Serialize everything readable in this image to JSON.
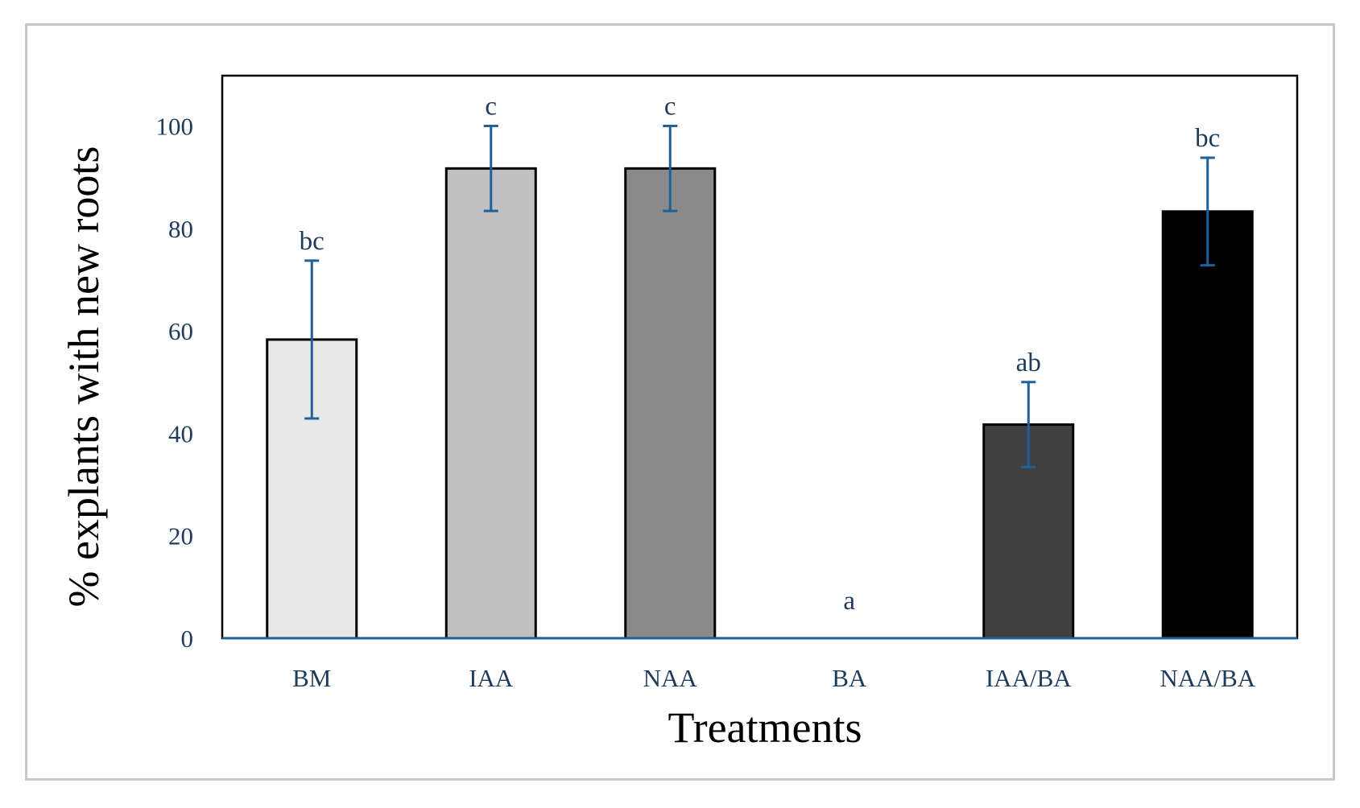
{
  "chart_data": {
    "type": "bar",
    "title": "",
    "xlabel": "Treatments",
    "ylabel": "% explants with new roots",
    "ylim": [
      0,
      110
    ],
    "yticks": [
      0,
      20,
      40,
      60,
      80,
      100
    ],
    "grid": false,
    "categories": [
      "BM",
      "IAA",
      "NAA",
      "BA",
      "IAA/BA",
      "NAA/BA"
    ],
    "values": [
      58.3,
      91.7,
      91.7,
      0,
      41.7,
      83.3
    ],
    "error": [
      15.4,
      8.3,
      8.3,
      0,
      8.3,
      10.5
    ],
    "significance": [
      "bc",
      "c",
      "c",
      "a",
      "ab",
      "bc"
    ],
    "bar_colors": [
      "#e8e8e8",
      "#c0c0c0",
      "#8a8a8a",
      "#ffffff",
      "#404040",
      "#000000"
    ],
    "error_color": "#1f5f9a",
    "axis_color": "#1f5f9a"
  }
}
